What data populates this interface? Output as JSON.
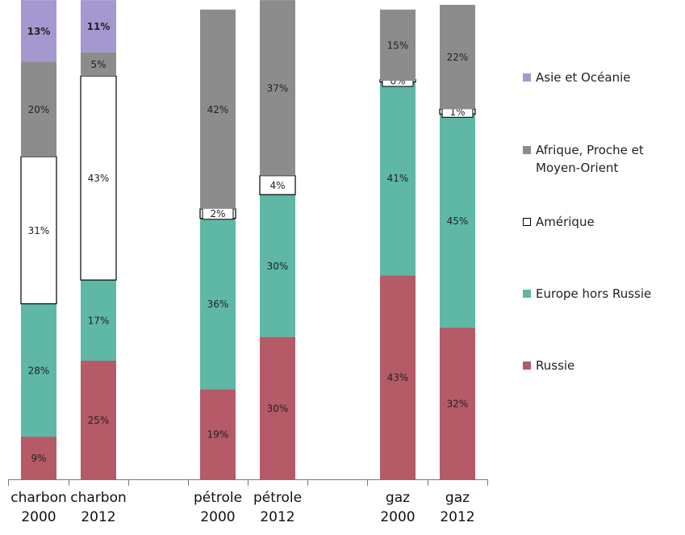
{
  "chart_data": {
    "type": "bar",
    "stacked": true,
    "title": "",
    "xlabel": "",
    "ylabel": "",
    "ylim": [
      0,
      100
    ],
    "grid": false,
    "legend_position": "right",
    "categories": [
      [
        "charbon",
        "2000"
      ],
      [
        "charbon",
        "2012"
      ],
      [
        "pétrole",
        "2000"
      ],
      [
        "pétrole",
        "2012"
      ],
      [
        "gaz",
        "2000"
      ],
      [
        "gaz",
        "2012"
      ]
    ],
    "series": [
      {
        "name": "Russie",
        "color": "#b55a67",
        "values": [
          9,
          25,
          19,
          30,
          43,
          32
        ],
        "labels": [
          "9%",
          "25%",
          "19%",
          "30%",
          "43%",
          "32%"
        ]
      },
      {
        "name": "Europe hors Russie",
        "color": "#5fb7a6",
        "values": [
          28,
          17,
          36,
          30,
          41,
          45
        ],
        "labels": [
          "28%",
          "17%",
          "36%",
          "30%",
          "41%",
          "45%"
        ]
      },
      {
        "name": "Amérique",
        "color": "#ffffff",
        "values": [
          31,
          43,
          2,
          4,
          0,
          1
        ],
        "labels": [
          "31%",
          "43%",
          "2%",
          "4%",
          "0%",
          "1%"
        ]
      },
      {
        "name": "Afrique, Proche et Moyen-Orient",
        "color": "#8c8c8c",
        "values": [
          20,
          5,
          42,
          37,
          15,
          22
        ],
        "labels": [
          "20%",
          "5%",
          "42%",
          "37%",
          "15%",
          "22%"
        ]
      },
      {
        "name": "Asie et Océanie",
        "color": "#a597cf",
        "values": [
          13,
          11,
          0,
          0,
          0,
          0
        ],
        "labels": [
          "13%",
          "11%",
          "",
          "",
          "",
          ""
        ]
      }
    ]
  }
}
